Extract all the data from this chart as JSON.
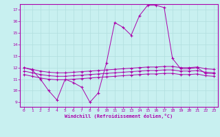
{
  "xlabel": "Windchill (Refroidissement éolien,°C)",
  "bg_color": "#c8f0f0",
  "grid_color": "#b0dede",
  "line_color": "#aa00aa",
  "xlim": [
    -0.5,
    23.5
  ],
  "ylim": [
    8.6,
    17.5
  ],
  "yticks": [
    9,
    10,
    11,
    12,
    13,
    14,
    15,
    16,
    17
  ],
  "xticks": [
    0,
    1,
    2,
    3,
    4,
    5,
    6,
    7,
    8,
    9,
    10,
    11,
    12,
    13,
    14,
    15,
    16,
    17,
    18,
    19,
    20,
    21,
    22,
    23
  ],
  "curve1_x": [
    0,
    1,
    2,
    3,
    4,
    5,
    6,
    7,
    8,
    9,
    10,
    11,
    12,
    13,
    14,
    15,
    16,
    17,
    18,
    19,
    20,
    21,
    22,
    23
  ],
  "curve1_y": [
    12.0,
    11.8,
    11.0,
    10.0,
    9.2,
    11.0,
    10.7,
    10.3,
    9.0,
    9.8,
    12.4,
    15.9,
    15.5,
    14.8,
    16.5,
    17.4,
    17.4,
    17.2,
    12.8,
    11.9,
    11.9,
    12.0,
    11.5,
    11.5
  ],
  "curve2_x": [
    0,
    1,
    2,
    3,
    4,
    5,
    6,
    7,
    8,
    9,
    10,
    11,
    12,
    13,
    14,
    15,
    16,
    17,
    18,
    19,
    20,
    21,
    22,
    23
  ],
  "curve2_y": [
    12.0,
    11.85,
    11.7,
    11.6,
    11.55,
    11.55,
    11.6,
    11.65,
    11.7,
    11.75,
    11.8,
    11.85,
    11.9,
    11.95,
    12.0,
    12.05,
    12.05,
    12.1,
    12.1,
    12.0,
    12.0,
    12.05,
    11.9,
    11.85
  ],
  "curve3_x": [
    0,
    1,
    2,
    3,
    4,
    5,
    6,
    7,
    8,
    9,
    10,
    11,
    12,
    13,
    14,
    15,
    16,
    17,
    18,
    19,
    20,
    21,
    22,
    23
  ],
  "curve3_y": [
    11.4,
    11.25,
    11.1,
    11.0,
    10.95,
    10.95,
    11.0,
    11.05,
    11.1,
    11.15,
    11.2,
    11.25,
    11.3,
    11.35,
    11.4,
    11.45,
    11.45,
    11.5,
    11.5,
    11.4,
    11.4,
    11.45,
    11.3,
    11.25
  ],
  "curve4_x": [
    0,
    1,
    2,
    3,
    4,
    5,
    6,
    7,
    8,
    9,
    10,
    11,
    12,
    13,
    14,
    15,
    16,
    17,
    18,
    19,
    20,
    21,
    22,
    23
  ],
  "curve4_y": [
    11.7,
    11.55,
    11.4,
    11.3,
    11.25,
    11.25,
    11.3,
    11.35,
    11.4,
    11.45,
    11.5,
    11.55,
    11.6,
    11.65,
    11.7,
    11.75,
    11.75,
    11.8,
    11.8,
    11.7,
    11.7,
    11.75,
    11.6,
    11.55
  ]
}
